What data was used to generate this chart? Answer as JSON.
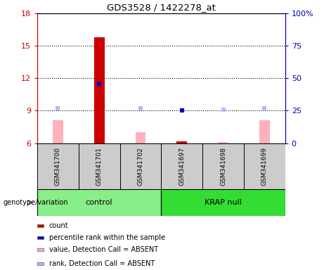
{
  "title": "GDS3528 / 1422278_at",
  "samples": [
    "GSM341700",
    "GSM341701",
    "GSM341702",
    "GSM341697",
    "GSM341698",
    "GSM341699"
  ],
  "groups": [
    {
      "name": "control",
      "indices": [
        0,
        1,
        2
      ],
      "color": "#88EE88"
    },
    {
      "name": "KRAP null",
      "indices": [
        3,
        4,
        5
      ],
      "color": "#33DD33"
    }
  ],
  "ylim_left": [
    6,
    18
  ],
  "ylim_right": [
    0,
    100
  ],
  "yticks_left": [
    6,
    9,
    12,
    15,
    18
  ],
  "ytick_labels_left": [
    "6",
    "9",
    "12",
    "15",
    "18"
  ],
  "yticks_right": [
    0,
    25,
    50,
    75,
    100
  ],
  "ytick_labels_right": [
    "0",
    "25",
    "50",
    "75",
    "100%"
  ],
  "left_axis_color": "#CC0000",
  "right_axis_color": "#0000BB",
  "bar_values": [
    8.1,
    15.8,
    7.0,
    6.15,
    6.1,
    8.1
  ],
  "bar_is_absent": [
    true,
    false,
    true,
    false,
    true,
    true
  ],
  "rank_pct": [
    27,
    46,
    27,
    25,
    26,
    27
  ],
  "rank_is_absent": [
    true,
    false,
    true,
    false,
    true,
    true
  ],
  "dotted_line_y": [
    9,
    12,
    15
  ],
  "bar_width": 0.25,
  "rank_marker_size": 5,
  "absent_bar_color": "#FFB0B8",
  "present_bar_color": "#CC0000",
  "absent_rank_color": "#AABBFF",
  "present_rank_color": "#0000CC",
  "legend_items": [
    {
      "color": "#CC0000",
      "label": "count"
    },
    {
      "color": "#0000CC",
      "label": "percentile rank within the sample"
    },
    {
      "color": "#FFB0B8",
      "label": "value, Detection Call = ABSENT"
    },
    {
      "color": "#AABBFF",
      "label": "rank, Detection Call = ABSENT"
    }
  ]
}
